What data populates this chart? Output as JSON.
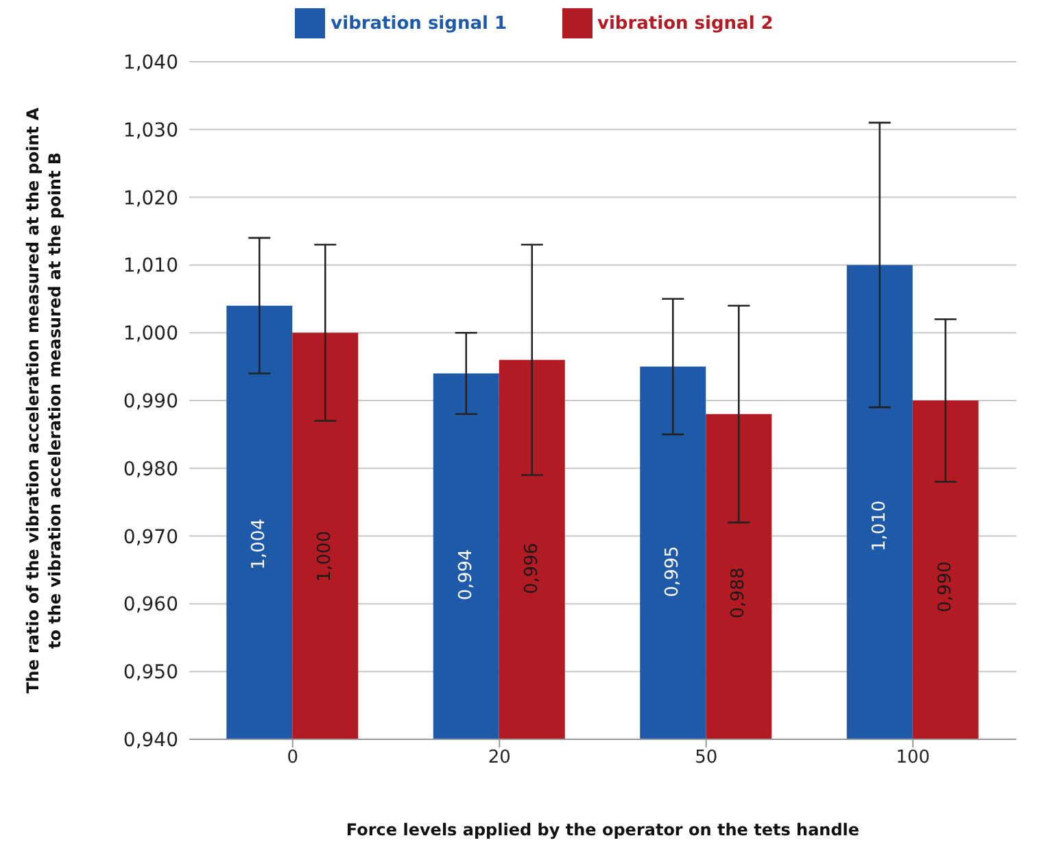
{
  "chart_data": {
    "type": "bar",
    "xlabel": "Force levels applied by the operator on the tets handle",
    "ylabel": "The ratio of the vibration acceleration measured at the point A\nto the vibration acceleration measured at the point B",
    "categories": [
      "0",
      "20",
      "50",
      "100"
    ],
    "series": [
      {
        "name": "vibration signal 1",
        "color": "#1f5aa8",
        "values": [
          1.004,
          0.994,
          0.995,
          1.01
        ],
        "errors": [
          [
            0.994,
            1.014
          ],
          [
            0.988,
            1.0
          ],
          [
            0.985,
            1.005
          ],
          [
            0.989,
            1.031
          ]
        ],
        "value_labels": [
          "1,004",
          "0,994",
          "0,995",
          "1,010"
        ]
      },
      {
        "name": "vibration signal 2",
        "color": "#b31b24",
        "values": [
          1.0,
          0.996,
          0.988,
          0.99
        ],
        "errors": [
          [
            0.987,
            1.013
          ],
          [
            0.979,
            1.013
          ],
          [
            0.972,
            1.004
          ],
          [
            0.978,
            1.002
          ]
        ],
        "value_labels": [
          "1,000",
          "0,996",
          "0,988",
          "0,990"
        ]
      }
    ],
    "ylim": [
      0.94,
      1.04
    ],
    "yticks": [
      {
        "value": 0.94,
        "label": "0,940"
      },
      {
        "value": 0.95,
        "label": "0,950"
      },
      {
        "value": 0.96,
        "label": "0,960"
      },
      {
        "value": 0.97,
        "label": "0,970"
      },
      {
        "value": 0.98,
        "label": "0,980"
      },
      {
        "value": 0.99,
        "label": "0,990"
      },
      {
        "value": 1.0,
        "label": "1,000"
      },
      {
        "value": 1.01,
        "label": "1,010"
      },
      {
        "value": 1.02,
        "label": "1,020"
      },
      {
        "value": 1.03,
        "label": "1,030"
      },
      {
        "value": 1.04,
        "label": "1,040"
      }
    ],
    "grid": "y",
    "legend": "top"
  }
}
